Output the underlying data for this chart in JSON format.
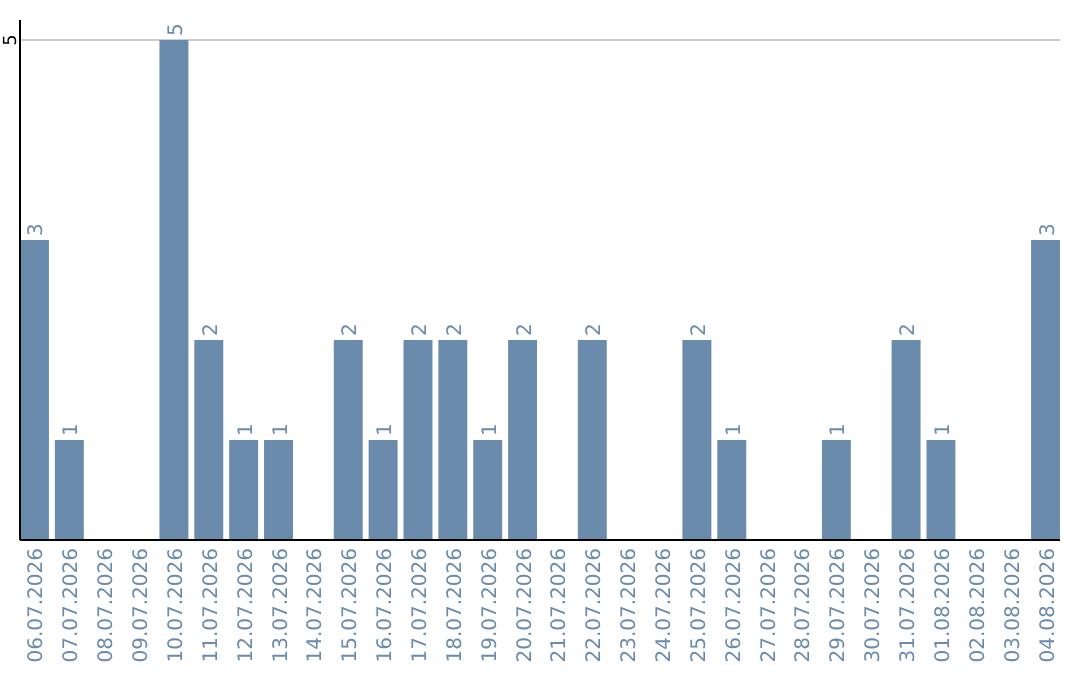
{
  "chart_data": {
    "type": "bar",
    "categories": [
      "06.07.2026",
      "07.07.2026",
      "08.07.2026",
      "09.07.2026",
      "10.07.2026",
      "11.07.2026",
      "12.07.2026",
      "13.07.2026",
      "14.07.2026",
      "15.07.2026",
      "16.07.2026",
      "17.07.2026",
      "18.07.2026",
      "19.07.2026",
      "20.07.2026",
      "21.07.2026",
      "22.07.2026",
      "23.07.2026",
      "24.07.2026",
      "25.07.2026",
      "26.07.2026",
      "27.07.2026",
      "28.07.2026",
      "29.07.2026",
      "30.07.2026",
      "31.07.2026",
      "01.08.2026",
      "02.08.2026",
      "03.08.2026",
      "04.08.2026"
    ],
    "values": [
      3,
      1,
      0,
      0,
      5,
      2,
      1,
      1,
      0,
      2,
      1,
      2,
      2,
      1,
      2,
      0,
      2,
      0,
      0,
      2,
      1,
      0,
      0,
      1,
      0,
      2,
      1,
      0,
      0,
      3
    ],
    "value_labels": [
      "3",
      "1",
      null,
      null,
      "5",
      "2",
      "1",
      "1",
      null,
      "2",
      "1",
      "2",
      "2",
      "1",
      "2",
      null,
      "2",
      null,
      null,
      "2",
      "1",
      null,
      null,
      "1",
      null,
      "2",
      "1",
      null,
      null,
      "3"
    ],
    "color": "#6a8bab",
    "ylim": [
      0,
      5.2
    ],
    "yticks": [
      5
    ],
    "grid": "y"
  }
}
